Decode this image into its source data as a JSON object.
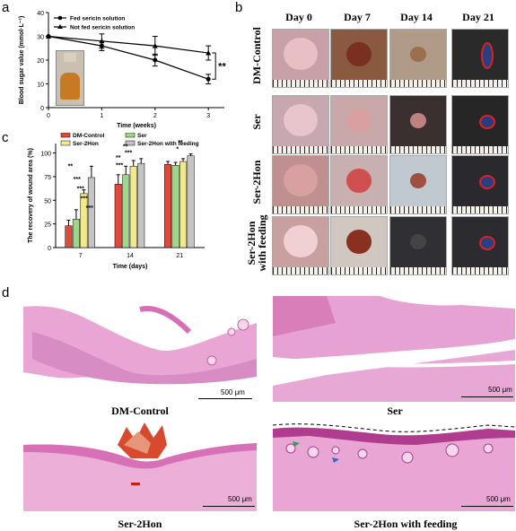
{
  "panels": {
    "a": "a",
    "b": "b",
    "c": "c",
    "d": "d"
  },
  "chart_data": [
    {
      "type": "line",
      "panel": "a",
      "xlabel": "Time (weeks)",
      "ylabel": "Blood sugar value (mmol·L⁻¹)",
      "x": [
        0,
        1,
        2,
        3
      ],
      "xticks": [
        "0",
        "1",
        "2",
        "3"
      ],
      "yticks": [
        "0",
        "10",
        "20",
        "30",
        "40"
      ],
      "xlim": [
        0,
        3.3
      ],
      "ylim": [
        0,
        40
      ],
      "series": [
        {
          "name": "Fed sericin solution",
          "marker": "circle",
          "values": [
            30,
            26,
            20,
            12
          ],
          "errors": [
            1.5,
            2,
            2.5,
            2
          ]
        },
        {
          "name": "Not fed sericin solution",
          "marker": "triangle",
          "values": [
            30,
            28,
            26,
            23
          ],
          "errors": [
            1.5,
            3,
            4,
            3
          ]
        }
      ],
      "significance": "**"
    },
    {
      "type": "bar",
      "panel": "c",
      "xlabel": "Time (days)",
      "ylabel": "The recovery of wound area (%)",
      "categories": [
        "7",
        "14",
        "21"
      ],
      "yticks": [
        "0",
        "25",
        "50",
        "75",
        "100"
      ],
      "ylim": [
        0,
        110
      ],
      "series": [
        {
          "name": "DM-Control",
          "color": "#e04a3a",
          "values": [
            23,
            67,
            88
          ],
          "errors": [
            6,
            10,
            3
          ]
        },
        {
          "name": "Ser",
          "color": "#9ed68a",
          "values": [
            30,
            77,
            87
          ],
          "errors": [
            10,
            9,
            3
          ]
        },
        {
          "name": "Ser-2Hon",
          "color": "#f4e98a",
          "values": [
            57,
            86,
            91
          ],
          "errors": [
            4,
            6,
            3
          ]
        },
        {
          "name": "Ser-2Hon with feeding",
          "color": "#c4c4c4",
          "values": [
            74,
            89,
            97
          ],
          "errors": [
            12,
            5,
            2
          ]
        }
      ],
      "annotations": {
        "d7": [
          "**",
          "***",
          "***",
          "***",
          "***"
        ],
        "d14": [
          "**",
          "**",
          "***",
          "***"
        ],
        "d21": [
          "**",
          "*"
        ]
      }
    }
  ],
  "panel_b": {
    "days": [
      "Day 0",
      "Day 7",
      "Day 14",
      "Day 21"
    ],
    "groups": [
      "DM-Control",
      "Ser",
      "Ser-2Hon",
      "Ser-2Hon\nwith feeding"
    ]
  },
  "panel_d": {
    "images": [
      {
        "label": "DM-Control",
        "scale": "500 μm"
      },
      {
        "label": "Ser",
        "scale": "500 μm"
      },
      {
        "label": "Ser-2Hon",
        "scale": "500 μm"
      },
      {
        "label": "Ser-2Hon with feeding",
        "scale": "500 μm"
      }
    ]
  },
  "colors": {
    "accent_red": "#e02020",
    "tissue_pink": "#e9a6d4",
    "tissue_dark": "#d86fb6"
  }
}
